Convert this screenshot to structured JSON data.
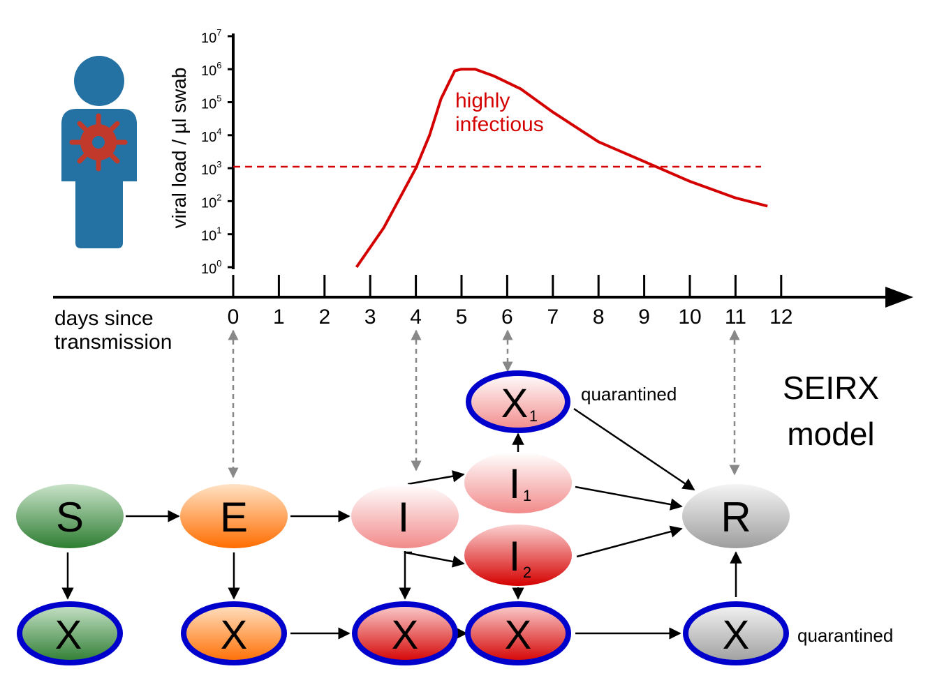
{
  "chart": {
    "ylabel": "viral load / µl swab",
    "xlabel_line1": "days since",
    "xlabel_line2": "transmission",
    "x_ticks": [
      "0",
      "1",
      "2",
      "3",
      "4",
      "5",
      "6",
      "7",
      "8",
      "9",
      "10",
      "11",
      "12"
    ],
    "y_ticks": [
      {
        "base": "10",
        "exp": "0"
      },
      {
        "base": "10",
        "exp": "1"
      },
      {
        "base": "10",
        "exp": "2"
      },
      {
        "base": "10",
        "exp": "3"
      },
      {
        "base": "10",
        "exp": "4"
      },
      {
        "base": "10",
        "exp": "5"
      },
      {
        "base": "10",
        "exp": "6"
      },
      {
        "base": "10",
        "exp": "7"
      }
    ],
    "annotation_line1": "highly",
    "annotation_line2": "infectious",
    "threshold_log10": 3,
    "curve_color": "#d40000",
    "person_icon": "person-with-virus-icon"
  },
  "chart_data": {
    "type": "line",
    "x": [
      2.7,
      3.3,
      4.0,
      4.3,
      4.55,
      4.85,
      5.0,
      5.3,
      5.7,
      6.3,
      7.0,
      8.0,
      9.0,
      10.0,
      11.0,
      11.7
    ],
    "y_log10": [
      0.0,
      1.2,
      3.0,
      4.0,
      5.1,
      5.95,
      6.0,
      6.0,
      5.8,
      5.4,
      4.7,
      3.8,
      3.2,
      2.6,
      2.1,
      1.85
    ],
    "xlabel": "days since transmission",
    "ylabel": "viral load / µl swab",
    "xlim": [
      0,
      12
    ],
    "ylim": [
      0,
      7
    ],
    "yscale": "log",
    "threshold": 1000
  },
  "model": {
    "title_line1": "SEIRX",
    "title_line2": "model",
    "quarantined_label": "quarantined",
    "states": {
      "S": "S",
      "E": "E",
      "I": "I",
      "I1": "I",
      "I1_sub": "1",
      "I2": "I",
      "I2_sub": "2",
      "R": "R",
      "X": "X",
      "X1_sub": "1"
    },
    "colors": {
      "S": "#2e7d32",
      "E": "#ff6d00",
      "I": "#f28a8a",
      "I2": "#d50000",
      "R": "#9e9e9e",
      "quarantine_ring": "#0000cc",
      "link_arrow": "#888888"
    }
  }
}
